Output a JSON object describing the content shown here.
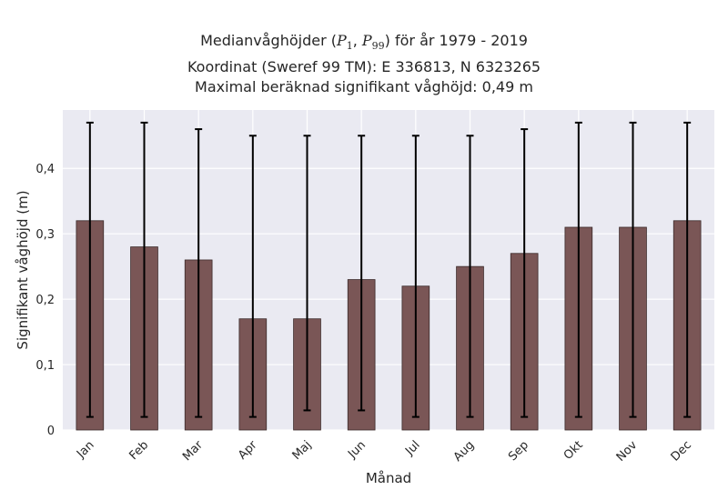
{
  "chart_data": {
    "type": "bar",
    "title": {
      "line1_prefix": "Medianvåghöjder (",
      "p_low": "P",
      "p_low_sub": "1",
      "separator": ", ",
      "p_high": "P",
      "p_high_sub": "99",
      "line1_suffix": ") för år 1979 - 2019",
      "line2": "Koordinat (Sweref 99 TM): E 336813, N 6323265",
      "line3": "Maximal beräknad signifikant våghöjd: 0,49 m"
    },
    "xlabel": "Månad",
    "ylabel": "Signifikant våghöjd (m)",
    "categories": [
      "Jan",
      "Feb",
      "Mar",
      "Apr",
      "Maj",
      "Jun",
      "Jul",
      "Aug",
      "Sep",
      "Okt",
      "Nov",
      "Dec"
    ],
    "values": [
      0.32,
      0.28,
      0.26,
      0.17,
      0.17,
      0.23,
      0.22,
      0.25,
      0.27,
      0.31,
      0.31,
      0.32
    ],
    "p1": [
      0.02,
      0.02,
      0.02,
      0.02,
      0.03,
      0.03,
      0.02,
      0.02,
      0.02,
      0.02,
      0.02,
      0.02
    ],
    "p99": [
      0.47,
      0.47,
      0.46,
      0.45,
      0.45,
      0.45,
      0.45,
      0.45,
      0.46,
      0.47,
      0.47,
      0.47
    ],
    "ylim": [
      0,
      0.4893
    ],
    "yticks": [
      0,
      0.1,
      0.2,
      0.3,
      0.4
    ],
    "ytick_labels": [
      "0",
      "0,1",
      "0,2",
      "0,3",
      "0,4"
    ],
    "grid": true,
    "colors": {
      "bar_fill": "#7a5656",
      "bar_edge": "#3b2a2a",
      "error_bar": "#000000",
      "plot_background": "#eaeaf2",
      "grid": "#ffffff"
    }
  }
}
